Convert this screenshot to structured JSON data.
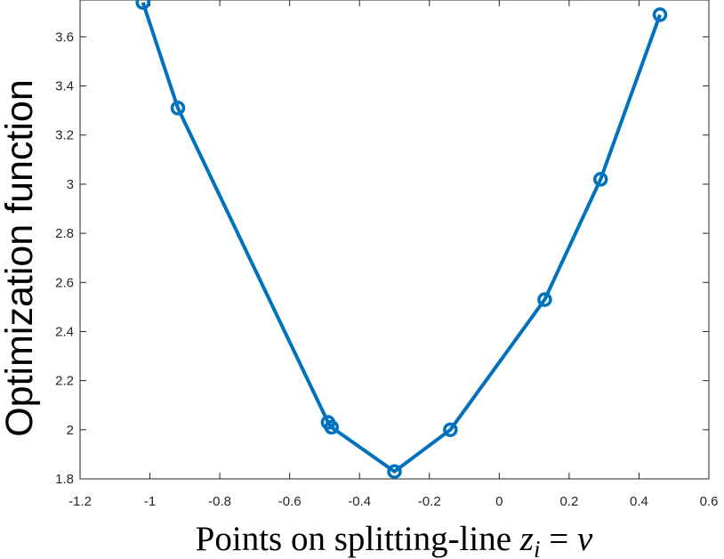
{
  "chart_data": {
    "type": "line",
    "title": "",
    "xlabel": "Points on splitting-line ",
    "xlabel_math": {
      "var": "z",
      "sub": "i",
      "eq": " = ",
      "rhs": "v"
    },
    "ylabel": "Optimization function",
    "xlim": [
      -1.2,
      0.6
    ],
    "ylim": [
      1.8,
      3.75
    ],
    "xticks": [
      -1.2,
      -1.0,
      -0.8,
      -0.6,
      -0.4,
      -0.2,
      0,
      0.2,
      0.4,
      0.6
    ],
    "xtick_labels": [
      "-1.2",
      "-1",
      "-0.8",
      "-0.6",
      "-0.4",
      "-0.2",
      "0",
      "0.2",
      "0.4",
      "0.6"
    ],
    "yticks": [
      1.8,
      2.0,
      2.2,
      2.4,
      2.6,
      2.8,
      3.0,
      3.2,
      3.4,
      3.6
    ],
    "ytick_labels": [
      "1.8",
      "2",
      "2.2",
      "2.4",
      "2.6",
      "2.8",
      "3",
      "3.2",
      "3.4",
      "3.6"
    ],
    "grid": false,
    "color": "#0072BD",
    "marker": "circle",
    "series": [
      {
        "x": [
          -1.02,
          -0.92,
          -0.49,
          -0.48,
          -0.3,
          -0.14,
          0.13,
          0.29,
          0.46
        ],
        "values": [
          3.74,
          3.31,
          2.03,
          2.01,
          1.83,
          2.0,
          2.53,
          3.02,
          3.69
        ]
      }
    ]
  }
}
